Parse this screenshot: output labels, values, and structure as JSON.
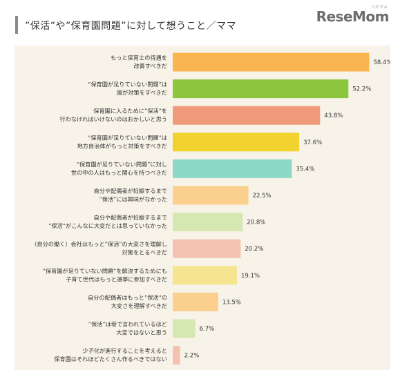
{
  "header": {
    "title": "”保活”や”保育園問題”に対して想うこと／ママ",
    "logo_text": "ReseMom",
    "logo_sub": "リセマム"
  },
  "chart_data": {
    "type": "bar",
    "orientation": "horizontal",
    "title": "",
    "xlabel": "",
    "ylabel": "",
    "xlim": [
      0,
      62
    ],
    "grid": false,
    "value_suffix": "%",
    "categories": [
      [
        "もっと保育士の待遇を",
        "改善すべきだ"
      ],
      [
        "”保育園が足りていない問題”は",
        "国が対策をすべきだ"
      ],
      [
        "保育園に入るために”保活”を",
        "行わなければいけないのはおかしいと思う"
      ],
      [
        "”保育園が足りていない問題”は",
        "地方自治体がもっと対策をすべきだ"
      ],
      [
        "”保育園が足りていない問題”に対し",
        "世の中の人はもっと関心を持つべきだ"
      ],
      [
        "自分や配偶者が妊娠するまで",
        "”保活”には興味がなかった"
      ],
      [
        "自分や配偶者が妊娠するまで",
        "”保活”がこんなに大変だとは思っていなかった"
      ],
      [
        "（自分の働く）会社はもっと”保活”の大変さを理解し",
        "対策をとるべきだ"
      ],
      [
        "”保育園が足りていない問題”を解決するためにも",
        "子育て世代はもっと選挙に参加すべきだ"
      ],
      [
        "自分の配偶者はもっと”保活”の",
        "大変さを理解すべきだ"
      ],
      [
        "”保活”は巷で言われているほど",
        "大変ではないと思う"
      ],
      [
        "少子化が進行することを考えると",
        "保育園はそれほどたくさん作るべきではない"
      ]
    ],
    "values": [
      58.4,
      52.2,
      43.8,
      37.6,
      35.4,
      22.5,
      20.8,
      20.2,
      19.1,
      13.5,
      6.7,
      2.2
    ],
    "colors": [
      "#f9b54f",
      "#8cc63f",
      "#ef9a7b",
      "#f2d22e",
      "#8ed8c8",
      "#fbd08f",
      "#d5e8b2",
      "#f5c2b2",
      "#f5e58e",
      "#fbd08f",
      "#d5e8b2",
      "#f5c2b2"
    ]
  }
}
